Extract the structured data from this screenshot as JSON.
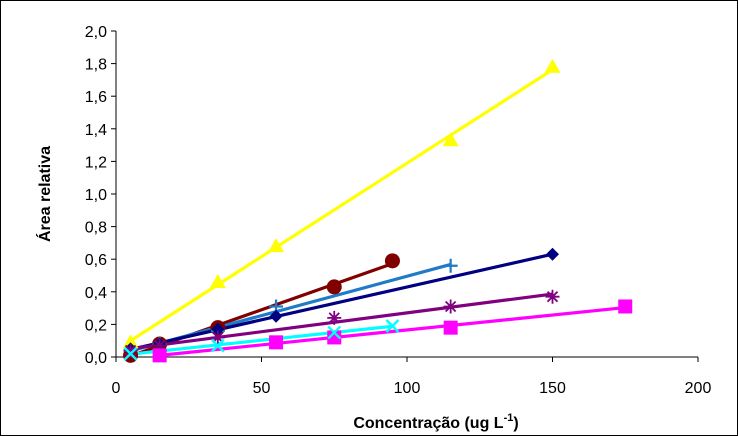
{
  "chart_data": {
    "type": "scatter",
    "title": "",
    "xlabel": "Concentração (ug L",
    "xlabel_sup": "-1",
    "xlabel_end": ")",
    "ylabel": "Área relativa",
    "xlim": [
      0,
      200
    ],
    "ylim": [
      0,
      2.0
    ],
    "x_ticks": [
      0,
      50,
      100,
      150,
      200
    ],
    "x_tick_labels": [
      "0",
      "50",
      "100",
      "150",
      "200"
    ],
    "y_ticks": [
      0,
      0.2,
      0.4,
      0.6,
      0.8,
      1.0,
      1.2,
      1.4,
      1.6,
      1.8,
      2.0
    ],
    "y_tick_labels": [
      "0,0",
      "0,2",
      "0,4",
      "0,6",
      "0,8",
      "1,0",
      "1,2",
      "1,4",
      "1,6",
      "1,8",
      "2,0"
    ],
    "grid": false,
    "legend": "none",
    "trendlines": true,
    "series": [
      {
        "color": "#FFFF00",
        "marker": "triangle",
        "x": [
          5,
          35,
          55,
          115,
          150
        ],
        "y": [
          0.09,
          0.46,
          0.68,
          1.33,
          1.78
        ]
      },
      {
        "color": "#800000",
        "marker": "circle",
        "x": [
          5,
          15,
          35,
          75,
          95
        ],
        "y": [
          0.01,
          0.08,
          0.18,
          0.43,
          0.59
        ]
      },
      {
        "color": "#1F7AC8",
        "marker": "plus",
        "x": [
          5,
          15,
          35,
          55,
          115
        ],
        "y": [
          0.04,
          0.08,
          0.16,
          0.31,
          0.56
        ]
      },
      {
        "color": "#000080",
        "marker": "diamond",
        "x": [
          5,
          15,
          35,
          55,
          150
        ],
        "y": [
          0.05,
          0.08,
          0.17,
          0.25,
          0.63
        ]
      },
      {
        "color": "#800080",
        "marker": "asterisk",
        "x": [
          5,
          15,
          35,
          75,
          115,
          150
        ],
        "y": [
          0.04,
          0.07,
          0.12,
          0.24,
          0.31,
          0.37
        ]
      },
      {
        "color": "#FF00FF",
        "marker": "square",
        "x": [
          15,
          55,
          75,
          115,
          175
        ],
        "y": [
          0.01,
          0.09,
          0.12,
          0.18,
          0.31
        ]
      },
      {
        "color": "#00FFFF",
        "marker": "x",
        "x": [
          5,
          35,
          75,
          95
        ],
        "y": [
          0.02,
          0.07,
          0.15,
          0.19
        ]
      }
    ]
  }
}
